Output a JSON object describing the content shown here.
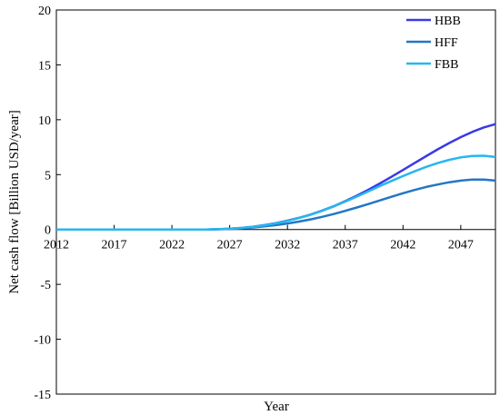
{
  "chart_data": {
    "type": "line",
    "title": "",
    "xlabel": "Year",
    "ylabel": "Net cash flow [Billion USD/year]",
    "xlim": [
      2012,
      2050
    ],
    "ylim": [
      -15,
      20
    ],
    "x_ticks": [
      2012,
      2017,
      2022,
      2027,
      2032,
      2037,
      2042,
      2047
    ],
    "y_ticks": [
      -15,
      -10,
      -5,
      0,
      5,
      10,
      15,
      20
    ],
    "legend_position": "top-right",
    "grid": false,
    "x": [
      2012,
      2014,
      2016,
      2018,
      2020,
      2022,
      2024,
      2025,
      2026,
      2027,
      2028,
      2029,
      2030,
      2031,
      2032,
      2033,
      2034,
      2035,
      2036,
      2037,
      2038,
      2039,
      2040,
      2041,
      2042,
      2043,
      2044,
      2045,
      2046,
      2047,
      2048,
      2049,
      2050
    ],
    "series": [
      {
        "name": "HBB",
        "color": "#3a3ae6",
        "values": [
          0,
          0,
          0,
          0,
          0,
          0,
          0,
          0,
          0.03,
          0.07,
          0.14,
          0.25,
          0.4,
          0.58,
          0.8,
          1.06,
          1.36,
          1.72,
          2.12,
          2.58,
          3.08,
          3.62,
          4.2,
          4.8,
          5.42,
          6.05,
          6.68,
          7.3,
          7.88,
          8.42,
          8.9,
          9.3,
          9.6
        ]
      },
      {
        "name": "HFF",
        "color": "#2277c4",
        "values": [
          0,
          0,
          0,
          0,
          0,
          0,
          0,
          0,
          0.02,
          0.05,
          0.1,
          0.18,
          0.28,
          0.4,
          0.55,
          0.72,
          0.92,
          1.15,
          1.41,
          1.7,
          2.0,
          2.32,
          2.65,
          2.98,
          3.3,
          3.6,
          3.87,
          4.1,
          4.3,
          4.45,
          4.55,
          4.55,
          4.45
        ]
      },
      {
        "name": "FBB",
        "color": "#27b7ee",
        "values": [
          0,
          0,
          0,
          0,
          0,
          0,
          0,
          0,
          0.03,
          0.07,
          0.14,
          0.24,
          0.38,
          0.56,
          0.78,
          1.04,
          1.34,
          1.7,
          2.1,
          2.54,
          3.0,
          3.48,
          3.96,
          4.42,
          4.87,
          5.3,
          5.7,
          6.05,
          6.35,
          6.57,
          6.7,
          6.72,
          6.6
        ]
      }
    ]
  }
}
